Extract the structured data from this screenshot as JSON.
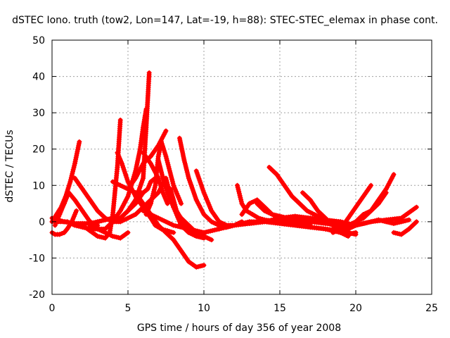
{
  "chart_data": {
    "type": "scatter",
    "title": "dSTEC Iono. truth (tow2, Lon=147, Lat=-19, h=88): STEC-STEC_elemax in phase cont.",
    "xlabel": "GPS time / hours of day 356 of year 2008",
    "ylabel": "dSTEC  / TECUs",
    "xlim": [
      0,
      25
    ],
    "ylim": [
      -20,
      50
    ],
    "xticks": [
      0,
      5,
      10,
      15,
      20,
      25
    ],
    "yticks": [
      -20,
      -10,
      0,
      10,
      20,
      30,
      40,
      50
    ],
    "grid": true,
    "marker": "plus",
    "color": "#ff0000",
    "series": [
      {
        "x": [
          0.0,
          0.3,
          0.6,
          0.9,
          1.2,
          1.5,
          1.8
        ],
        "y": [
          0,
          2,
          4,
          7,
          11,
          16,
          22
        ]
      },
      {
        "x": [
          0.0,
          0.2,
          0.5,
          0.8,
          1.0,
          1.3,
          1.6
        ],
        "y": [
          -3,
          -3.5,
          -3.5,
          -3,
          -2,
          0,
          3
        ]
      },
      {
        "x": [
          0.2,
          0.5,
          0.8,
          1.1,
          1.5,
          2.0,
          2.5,
          3.0
        ],
        "y": [
          -1,
          2,
          5,
          8,
          6,
          3,
          0,
          -1
        ]
      },
      {
        "x": [
          1.5,
          2.0,
          2.5,
          3.0,
          3.5,
          4.0,
          4.5,
          5.0,
          5.5,
          6.0
        ],
        "y": [
          12,
          9,
          6,
          3,
          1,
          0,
          1,
          3,
          5,
          8
        ]
      },
      {
        "x": [
          0.0,
          0.8,
          1.5,
          2.0,
          2.5,
          3.0,
          3.5,
          4.0,
          4.5
        ],
        "y": [
          1,
          0,
          -0.5,
          -0.5,
          -0.5,
          0,
          0.5,
          1,
          1
        ]
      },
      {
        "x": [
          0.3,
          1.0,
          1.5,
          2.0,
          2.5,
          3.0,
          3.5,
          4.0,
          4.5,
          5.0
        ],
        "y": [
          0,
          0,
          -1,
          -1.5,
          -2,
          -2,
          -3,
          -4,
          -4.5,
          -3
        ]
      },
      {
        "x": [
          2.0,
          2.5,
          3.0,
          3.5,
          3.8,
          4.0,
          4.3,
          4.5
        ],
        "y": [
          -1,
          -2.5,
          -4,
          -4.5,
          -3,
          2,
          15,
          28
        ]
      },
      {
        "x": [
          2.5,
          3.0,
          3.5,
          4.0,
          4.5,
          5.0,
          5.5,
          5.8,
          6.0,
          6.2
        ],
        "y": [
          -1,
          -2,
          -2,
          0,
          3,
          7,
          14,
          20,
          26,
          31
        ]
      },
      {
        "x": [
          4.0,
          4.5,
          5.0,
          5.5,
          6.0,
          6.2,
          6.4
        ],
        "y": [
          0,
          1,
          3,
          6,
          12,
          26,
          41
        ]
      },
      {
        "x": [
          4.0,
          4.5,
          5.0,
          5.5,
          6.0,
          6.3,
          6.5,
          6.8,
          7.0
        ],
        "y": [
          11,
          10,
          9,
          8,
          8,
          9,
          11,
          12,
          11
        ]
      },
      {
        "x": [
          4.3,
          4.6,
          5.0,
          5.5,
          6.0,
          6.5,
          6.8,
          7.2,
          7.6,
          8.0
        ],
        "y": [
          19,
          16,
          11,
          7,
          4,
          1,
          -1,
          -2,
          -2.5,
          -3
        ]
      },
      {
        "x": [
          4.0,
          4.5,
          5.0,
          5.5,
          6.0,
          6.5,
          7.0,
          7.5,
          8.0,
          8.5,
          9.0,
          9.5,
          10.0
        ],
        "y": [
          0,
          0,
          1,
          2,
          4,
          6,
          8,
          12,
          4,
          -1,
          -3,
          -4,
          -4.5
        ]
      },
      {
        "x": [
          5.0,
          5.5,
          6.0,
          6.5,
          7.0,
          7.5
        ],
        "y": [
          9,
          12,
          16,
          18,
          21,
          25
        ]
      },
      {
        "x": [
          6.0,
          6.5,
          7.0,
          7.3,
          7.6
        ],
        "y": [
          19,
          16,
          12,
          8,
          5
        ]
      },
      {
        "x": [
          6.2,
          6.5,
          6.8,
          7.0,
          7.2,
          7.5,
          8.0,
          8.5
        ],
        "y": [
          2,
          5,
          10,
          18,
          22,
          18,
          10,
          5
        ]
      },
      {
        "x": [
          5.5,
          6.0,
          6.5,
          7.0,
          7.5,
          8.0,
          8.5,
          9.0,
          9.5,
          10.0
        ],
        "y": [
          8,
          5,
          2,
          -1,
          -3,
          -5,
          -8,
          -11,
          -12.5,
          -12
        ]
      },
      {
        "x": [
          6.0,
          7.0,
          8.0,
          9.0,
          10.0,
          11.0,
          12.0
        ],
        "y": [
          3,
          1,
          -1,
          -2,
          -3,
          -2,
          -1
        ]
      },
      {
        "x": [
          7.0,
          7.3,
          7.6,
          8.0,
          8.5,
          9.0,
          9.5,
          10.0
        ],
        "y": [
          17,
          12,
          8,
          4,
          1,
          -1,
          -3,
          -4
        ]
      },
      {
        "x": [
          7.8,
          8.2,
          8.6,
          9.0,
          9.5,
          10.0,
          10.5
        ],
        "y": [
          9,
          3,
          0,
          -2,
          -3,
          -4,
          -5
        ]
      },
      {
        "x": [
          8.4,
          8.7,
          9.0,
          9.5,
          10.0,
          10.5,
          11.0,
          11.5,
          12.0,
          12.5
        ],
        "y": [
          23,
          17,
          12,
          6,
          2,
          0,
          -1,
          -1.5,
          -1,
          0
        ]
      },
      {
        "x": [
          9.5,
          10.0,
          10.5,
          11.0,
          11.5,
          12.0,
          12.5,
          13.0,
          14.0
        ],
        "y": [
          14,
          8,
          3,
          0,
          -1,
          -1,
          -0.5,
          0,
          0
        ]
      },
      {
        "x": [
          12.2,
          12.5,
          12.8,
          13.2,
          13.6,
          14.0,
          14.5,
          15.0,
          16.0,
          17.0
        ],
        "y": [
          10,
          5,
          3,
          2,
          1,
          0.5,
          0.2,
          0,
          -0.5,
          -1
        ]
      },
      {
        "x": [
          12.5,
          13.0,
          13.5,
          14.0,
          14.5,
          15.0,
          15.5,
          16.0
        ],
        "y": [
          2,
          5,
          6,
          4,
          2,
          1,
          0.5,
          0
        ]
      },
      {
        "x": [
          13.5,
          14.0,
          14.5,
          15.0,
          15.5,
          16.0,
          17.0,
          18.0,
          19.0
        ],
        "y": [
          5,
          3,
          2,
          1.5,
          1,
          0.5,
          0,
          -0.5,
          -1
        ]
      },
      {
        "x": [
          14.3,
          14.8,
          15.3,
          15.8,
          16.3,
          16.8,
          17.5,
          18.0,
          18.5
        ],
        "y": [
          15,
          13,
          10,
          7,
          5,
          3,
          1.5,
          0.5,
          0
        ]
      },
      {
        "x": [
          13.0,
          14.0,
          15.0,
          16.0,
          17.0,
          18.0,
          19.0,
          19.5
        ],
        "y": [
          -0.5,
          0,
          1,
          1.5,
          1,
          0.5,
          0,
          -1
        ]
      },
      {
        "x": [
          12.0,
          13.0,
          14.0,
          15.0,
          16.0,
          17.0,
          18.0,
          19.0
        ],
        "y": [
          -1,
          -0.5,
          0,
          -0.5,
          -1,
          -1.5,
          -2,
          -2.5
        ]
      },
      {
        "x": [
          16.5,
          17.0,
          17.5,
          18.0,
          18.5,
          19.0,
          19.5
        ],
        "y": [
          8,
          6,
          3,
          1,
          -1,
          -3,
          -4
        ]
      },
      {
        "x": [
          15.0,
          16.0,
          17.0,
          18.0,
          18.5,
          19.0,
          19.5,
          20.0
        ],
        "y": [
          -0.5,
          -1,
          -1.5,
          -2,
          -2.5,
          -3,
          -3.5,
          -3
        ]
      },
      {
        "x": [
          17.0,
          17.5,
          18.0,
          18.5,
          19.0,
          19.5,
          20.0
        ],
        "y": [
          1,
          0.5,
          0,
          -1,
          -2,
          -3,
          -3.5
        ]
      },
      {
        "x": [
          18.5,
          19.0,
          19.5,
          20.0,
          20.5,
          21.0
        ],
        "y": [
          -3,
          -2,
          1,
          4,
          7,
          10
        ]
      },
      {
        "x": [
          19.0,
          19.5,
          20.0,
          20.5,
          21.0,
          21.5,
          22.0,
          22.5
        ],
        "y": [
          -3,
          -1,
          0,
          1,
          3,
          6,
          9,
          13
        ]
      },
      {
        "x": [
          19.3,
          20.0,
          20.5,
          21.0,
          21.5,
          22.0
        ],
        "y": [
          -2,
          0,
          2,
          3,
          5,
          8
        ]
      },
      {
        "x": [
          19.0,
          20.0,
          21.0,
          22.0,
          23.0,
          24.0
        ],
        "y": [
          0,
          -1,
          0,
          0.5,
          1,
          4
        ]
      },
      {
        "x": [
          19.5,
          20.0,
          20.5,
          21.0
        ],
        "y": [
          -2,
          -1,
          -0.5,
          0
        ]
      },
      {
        "x": [
          22.5,
          23.0,
          23.5,
          24.0
        ],
        "y": [
          -3,
          -3.5,
          -2,
          0
        ]
      },
      {
        "x": [
          20.5,
          21.0,
          21.5,
          22.0,
          22.5,
          23.0,
          23.5
        ],
        "y": [
          -0.5,
          0,
          0.5,
          0,
          -0.5,
          0,
          0.5
        ]
      }
    ]
  }
}
